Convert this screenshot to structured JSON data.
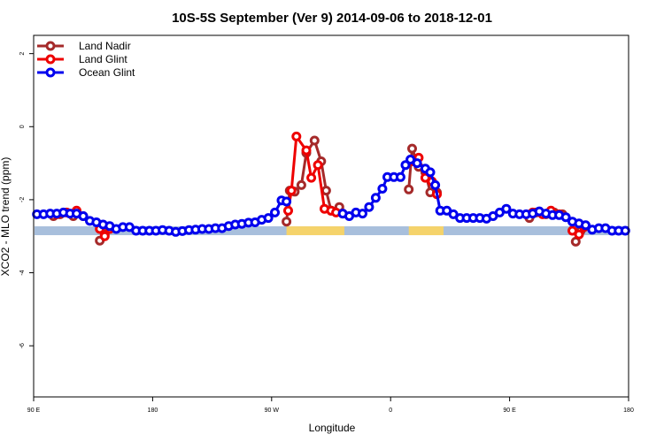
{
  "chart_data": {
    "type": "line",
    "title": "10S-5S September (Ver 9)   2014-09-06 to 2018-12-01",
    "xlabel": "Longitude",
    "ylabel": "XCO2 - MLO trend (ppm)",
    "xlim": [
      0,
      360
    ],
    "ylim": [
      -7.4,
      2.5
    ],
    "x_ticks": [
      {
        "value": 0,
        "label": "90 E"
      },
      {
        "value": 72,
        "label": "180"
      },
      {
        "value": 144,
        "label": "90 W"
      },
      {
        "value": 216,
        "label": "0"
      },
      {
        "value": 288,
        "label": "90 E"
      },
      {
        "value": 360,
        "label": "180"
      }
    ],
    "y_ticks": [
      {
        "value": 2,
        "label": "2"
      },
      {
        "value": 0,
        "label": "0"
      },
      {
        "value": -2,
        "label": "-2"
      },
      {
        "value": -4,
        "label": "-4"
      },
      {
        "value": -6,
        "label": "-6"
      }
    ],
    "legend_position": "top-left",
    "grid": false,
    "land_band": {
      "y": -2.85,
      "ocean_color": "#a8bfdc",
      "land_color": "#f5d36b",
      "land_segments": [
        [
          153,
          188
        ],
        [
          227,
          248
        ]
      ]
    },
    "series": [
      {
        "name": "Land Nadir",
        "color": "#a52a2a",
        "segments": [
          [
            [
              12,
              -2.45
            ],
            [
              16,
              -2.4
            ],
            [
              24,
              -2.45
            ]
          ],
          [
            [
              40,
              -3.12
            ],
            [
              43,
              -2.95
            ]
          ],
          [
            [
              153,
              -2.6
            ],
            [
              155,
              -1.75
            ],
            [
              158,
              -1.78
            ],
            [
              162,
              -1.6
            ],
            [
              165,
              -0.72
            ],
            [
              170,
              -0.38
            ],
            [
              174,
              -0.95
            ],
            [
              177,
              -1.75
            ],
            [
              180,
              -2.3
            ],
            [
              185,
              -2.2
            ],
            [
              187,
              -2.38
            ]
          ],
          [
            [
              227,
              -1.72
            ],
            [
              229,
              -0.6
            ],
            [
              233,
              -1.1
            ],
            [
              237,
              -1.25
            ],
            [
              240,
              -1.8
            ],
            [
              244,
              -1.8
            ]
          ],
          [
            [
              300,
              -2.5
            ],
            [
              304,
              -2.35
            ],
            [
              310,
              -2.4
            ],
            [
              315,
              -2.35
            ],
            [
              320,
              -2.4
            ]
          ],
          [
            [
              328,
              -3.15
            ],
            [
              331,
              -2.85
            ]
          ]
        ]
      },
      {
        "name": "Land Glint",
        "color": "#ee0000",
        "segments": [
          [
            [
              14,
              -2.4
            ],
            [
              20,
              -2.35
            ],
            [
              26,
              -2.3
            ],
            [
              30,
              -2.45
            ]
          ],
          [
            [
              40,
              -2.8
            ],
            [
              43,
              -3.0
            ],
            [
              46,
              -2.8
            ]
          ],
          [
            [
              154,
              -2.3
            ],
            [
              156,
              -1.75
            ],
            [
              159,
              -0.27
            ],
            [
              165,
              -0.65
            ],
            [
              168,
              -1.4
            ],
            [
              172,
              -1.05
            ],
            [
              176,
              -2.25
            ],
            [
              180,
              -2.3
            ],
            [
              183,
              -2.35
            ]
          ],
          [
            [
              230,
              -0.95
            ],
            [
              233,
              -0.85
            ],
            [
              237,
              -1.4
            ],
            [
              241,
              -1.5
            ],
            [
              244,
              -1.85
            ]
          ],
          [
            [
              302,
              -2.35
            ],
            [
              308,
              -2.4
            ],
            [
              313,
              -2.3
            ],
            [
              318,
              -2.4
            ]
          ],
          [
            [
              326,
              -2.85
            ],
            [
              330,
              -2.95
            ],
            [
              333,
              -2.75
            ]
          ]
        ]
      },
      {
        "name": "Ocean Glint",
        "color": "#0000ee",
        "segments": [
          [
            [
              2,
              -2.4
            ],
            [
              6,
              -2.4
            ],
            [
              10,
              -2.38
            ],
            [
              14,
              -2.38
            ],
            [
              18,
              -2.35
            ],
            [
              22,
              -2.38
            ],
            [
              26,
              -2.38
            ],
            [
              30,
              -2.45
            ],
            [
              34,
              -2.58
            ],
            [
              38,
              -2.62
            ],
            [
              42,
              -2.68
            ],
            [
              46,
              -2.72
            ],
            [
              50,
              -2.8
            ],
            [
              54,
              -2.75
            ],
            [
              58,
              -2.75
            ],
            [
              62,
              -2.85
            ],
            [
              66,
              -2.85
            ],
            [
              70,
              -2.85
            ],
            [
              74,
              -2.85
            ],
            [
              78,
              -2.83
            ],
            [
              82,
              -2.85
            ],
            [
              86,
              -2.88
            ],
            [
              90,
              -2.86
            ],
            [
              94,
              -2.83
            ],
            [
              98,
              -2.82
            ],
            [
              102,
              -2.8
            ],
            [
              106,
              -2.8
            ],
            [
              110,
              -2.78
            ],
            [
              114,
              -2.78
            ],
            [
              118,
              -2.72
            ],
            [
              122,
              -2.68
            ],
            [
              126,
              -2.66
            ],
            [
              130,
              -2.63
            ],
            [
              134,
              -2.62
            ],
            [
              138,
              -2.55
            ],
            [
              142,
              -2.5
            ],
            [
              146,
              -2.35
            ],
            [
              150,
              -2.02
            ],
            [
              153,
              -2.05
            ]
          ],
          [
            [
              187,
              -2.38
            ],
            [
              191,
              -2.45
            ],
            [
              195,
              -2.35
            ],
            [
              199,
              -2.38
            ],
            [
              203,
              -2.2
            ],
            [
              207,
              -1.95
            ],
            [
              211,
              -1.7
            ],
            [
              214,
              -1.38
            ],
            [
              218,
              -1.38
            ],
            [
              222,
              -1.38
            ],
            [
              225,
              -1.05
            ],
            [
              228,
              -0.9
            ],
            [
              232,
              -1.0
            ],
            [
              237,
              -1.15
            ],
            [
              240,
              -1.25
            ],
            [
              243,
              -1.6
            ],
            [
              246,
              -2.3
            ],
            [
              250,
              -2.3
            ],
            [
              254,
              -2.4
            ],
            [
              258,
              -2.5
            ],
            [
              262,
              -2.5
            ],
            [
              266,
              -2.5
            ],
            [
              270,
              -2.5
            ],
            [
              274,
              -2.52
            ],
            [
              278,
              -2.45
            ],
            [
              282,
              -2.35
            ],
            [
              286,
              -2.25
            ],
            [
              290,
              -2.38
            ],
            [
              294,
              -2.4
            ],
            [
              298,
              -2.4
            ],
            [
              302,
              -2.38
            ],
            [
              306,
              -2.32
            ],
            [
              310,
              -2.38
            ],
            [
              314,
              -2.42
            ],
            [
              318,
              -2.42
            ],
            [
              322,
              -2.48
            ],
            [
              326,
              -2.6
            ],
            [
              330,
              -2.65
            ],
            [
              334,
              -2.7
            ],
            [
              338,
              -2.82
            ],
            [
              342,
              -2.78
            ],
            [
              346,
              -2.78
            ],
            [
              350,
              -2.85
            ],
            [
              354,
              -2.85
            ],
            [
              358,
              -2.85
            ]
          ]
        ]
      }
    ]
  }
}
